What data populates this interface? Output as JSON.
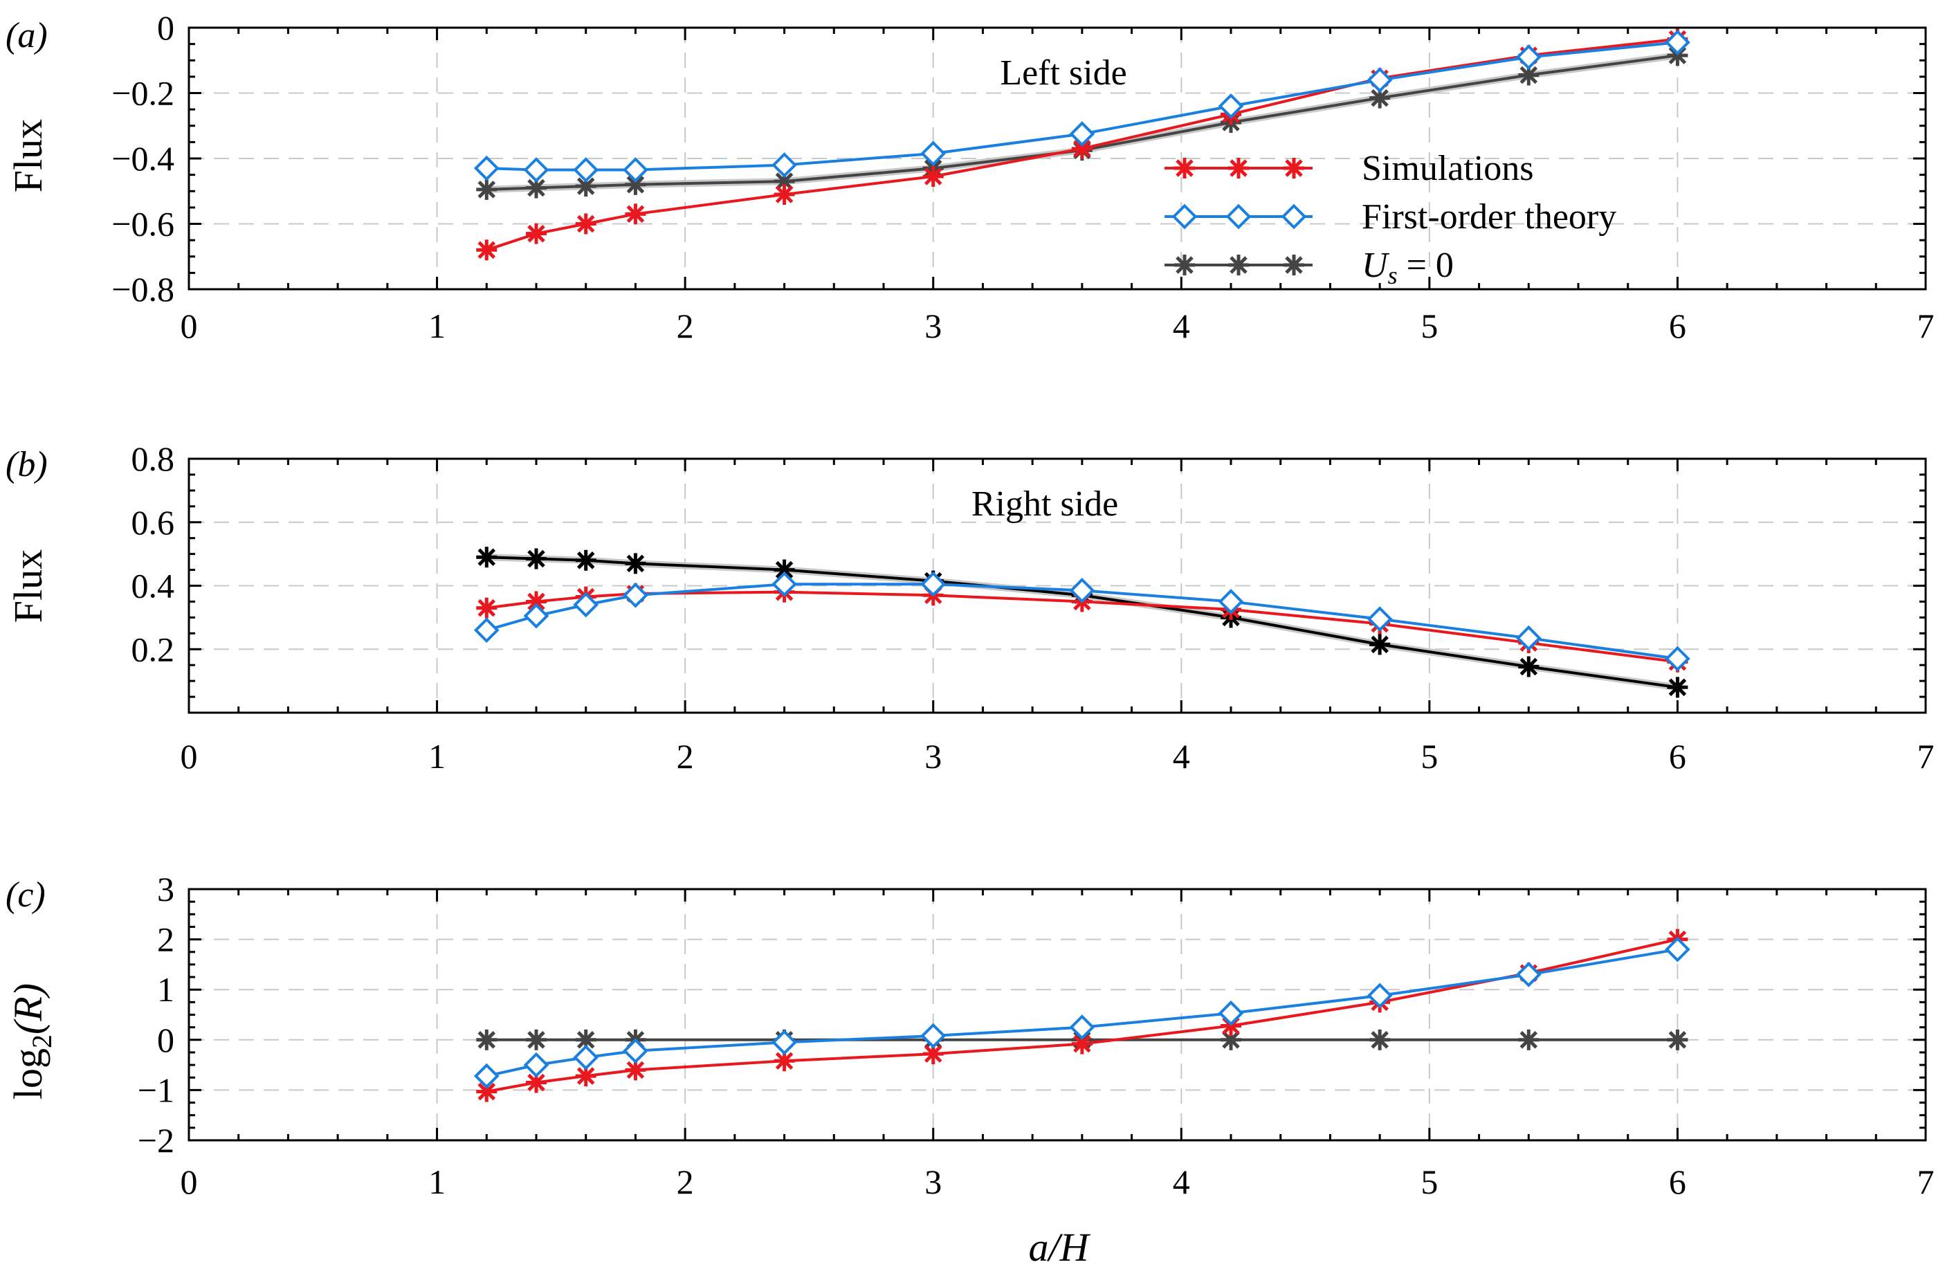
{
  "colors": {
    "simulations": "#e8181e",
    "theory": "#1a80e0",
    "us_zero_dark": "#444444",
    "us_zero_black": "#000000",
    "grid": "#c8c8c8",
    "shadow": "#c8c8c8"
  },
  "chart_data": [
    {
      "type": "line",
      "panel_label": "(a)",
      "annotation": "Left side",
      "ylabel": "Flux",
      "xlim": [
        0,
        7
      ],
      "ylim": [
        -0.8,
        0
      ],
      "xticks": [
        "0",
        "1",
        "2",
        "3",
        "4",
        "5",
        "6",
        "7"
      ],
      "yticks": [
        "−0.8",
        "−0.6",
        "−0.4",
        "−0.2",
        "0"
      ],
      "ytick_values": [
        -0.8,
        -0.6,
        -0.4,
        -0.2,
        0
      ],
      "grid": true,
      "legend_position": "center-right",
      "x": [
        1.2,
        1.4,
        1.6,
        1.8,
        2.4,
        3.0,
        3.6,
        4.2,
        4.8,
        5.4,
        6.0
      ],
      "series": [
        {
          "name": "Simulations",
          "key": "sim",
          "marker": "asterisk",
          "values": [
            -0.68,
            -0.63,
            -0.6,
            -0.57,
            -0.51,
            -0.455,
            -0.37,
            -0.265,
            -0.155,
            -0.085,
            -0.035
          ]
        },
        {
          "name": "First-order theory",
          "key": "theory",
          "marker": "diamond",
          "values": [
            -0.43,
            -0.435,
            -0.435,
            -0.435,
            -0.42,
            -0.385,
            -0.325,
            -0.24,
            -0.16,
            -0.09,
            -0.045
          ]
        },
        {
          "name": "U_s = 0",
          "key": "us0",
          "marker": "asterisk",
          "values": [
            -0.495,
            -0.49,
            -0.485,
            -0.48,
            -0.47,
            -0.43,
            -0.375,
            -0.29,
            -0.215,
            -0.145,
            -0.085
          ]
        }
      ],
      "legend": {
        "entries": [
          "Simulations",
          "First-order theory"
        ],
        "us0_symbol": "U",
        "us0_subscript": "s",
        "us0_rest": " = 0"
      }
    },
    {
      "type": "line",
      "panel_label": "(b)",
      "annotation": "Right side",
      "ylabel": "Flux",
      "xlim": [
        0,
        7
      ],
      "ylim": [
        0,
        0.8
      ],
      "xticks": [
        "0",
        "1",
        "2",
        "3",
        "4",
        "5",
        "6",
        "7"
      ],
      "yticks": [
        "0.2",
        "0.4",
        "0.6",
        "0.8"
      ],
      "ytick_values": [
        0.2,
        0.4,
        0.6,
        0.8
      ],
      "grid": true,
      "x": [
        1.2,
        1.4,
        1.6,
        1.8,
        2.4,
        3.0,
        3.6,
        4.2,
        4.8,
        5.4,
        6.0
      ],
      "series": [
        {
          "key": "sim",
          "marker": "asterisk",
          "values": [
            0.33,
            0.35,
            0.365,
            0.375,
            0.38,
            0.37,
            0.35,
            0.325,
            0.28,
            0.22,
            0.16
          ]
        },
        {
          "key": "theory",
          "marker": "diamond",
          "values": [
            0.26,
            0.305,
            0.34,
            0.37,
            0.405,
            0.405,
            0.385,
            0.35,
            0.295,
            0.235,
            0.17
          ]
        },
        {
          "key": "us0",
          "marker": "asterisk",
          "values": [
            0.49,
            0.485,
            0.48,
            0.47,
            0.45,
            0.415,
            0.37,
            0.3,
            0.215,
            0.145,
            0.08
          ]
        }
      ]
    },
    {
      "type": "line",
      "panel_label": "(c)",
      "ylabel_main": "log",
      "ylabel_sub": "2",
      "ylabel_rest": "(R)",
      "xlabel": "a/H",
      "xlim": [
        0,
        7
      ],
      "ylim": [
        -2,
        3
      ],
      "xticks": [
        "0",
        "1",
        "2",
        "3",
        "4",
        "5",
        "6",
        "7"
      ],
      "yticks": [
        "−2",
        "−1",
        "0",
        "1",
        "2",
        "3"
      ],
      "ytick_values": [
        -2,
        -1,
        0,
        1,
        2,
        3
      ],
      "grid": true,
      "x": [
        1.2,
        1.4,
        1.6,
        1.8,
        2.4,
        3.0,
        3.6,
        4.2,
        4.8,
        5.4,
        6.0
      ],
      "series": [
        {
          "key": "sim",
          "marker": "asterisk",
          "values": [
            -1.03,
            -0.85,
            -0.72,
            -0.6,
            -0.42,
            -0.28,
            -0.08,
            0.28,
            0.75,
            1.33,
            2.0
          ]
        },
        {
          "key": "theory",
          "marker": "diamond",
          "values": [
            -0.72,
            -0.5,
            -0.35,
            -0.22,
            -0.05,
            0.08,
            0.25,
            0.53,
            0.88,
            1.3,
            1.8
          ]
        },
        {
          "key": "us0",
          "marker": "asterisk",
          "values": [
            0,
            0,
            0,
            0,
            0,
            0,
            0,
            0,
            0,
            0,
            0
          ]
        }
      ]
    }
  ]
}
